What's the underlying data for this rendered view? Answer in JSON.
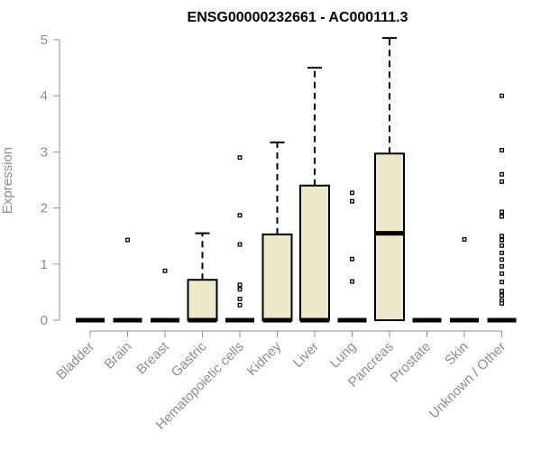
{
  "chart_data": {
    "type": "box",
    "title": "ENSG00000232661 - AC000111.3",
    "ylabel": "Expression",
    "xlabel": "",
    "ylim": [
      0,
      5
    ],
    "yticks": [
      0,
      1,
      2,
      3,
      4,
      5
    ],
    "grid": false,
    "legend": "none",
    "colors": {
      "box_fill": "#ede7cb",
      "box_stroke": "#000000",
      "axis": "#8e8e8e",
      "title": "#000000"
    },
    "categories": [
      "Bladder",
      "Brain",
      "Breast",
      "Gastric",
      "Hematopoietic cells",
      "Kidney",
      "Liver",
      "Lung",
      "Pancreas",
      "Prostate",
      "Skin",
      "Unknown / Other"
    ],
    "boxes": [
      {
        "category": "Bladder",
        "min": 0,
        "q1": 0,
        "median": 0,
        "q3": 0,
        "max": 0,
        "outliers": []
      },
      {
        "category": "Brain",
        "min": 0,
        "q1": 0,
        "median": 0,
        "q3": 0,
        "max": 0,
        "outliers": [
          1.43
        ]
      },
      {
        "category": "Breast",
        "min": 0,
        "q1": 0,
        "median": 0,
        "q3": 0,
        "max": 0,
        "outliers": [
          0.88
        ]
      },
      {
        "category": "Gastric",
        "min": 0,
        "q1": 0,
        "median": 0,
        "q3": 0.72,
        "max": 1.55,
        "outliers": []
      },
      {
        "category": "Hematopoietic cells",
        "min": 0,
        "q1": 0,
        "median": 0,
        "q3": 0,
        "max": 0,
        "outliers": [
          2.9,
          1.87,
          1.35,
          0.63,
          0.55,
          0.38,
          0.27
        ]
      },
      {
        "category": "Kidney",
        "min": 0,
        "q1": 0,
        "median": 0,
        "q3": 1.53,
        "max": 3.17,
        "outliers": []
      },
      {
        "category": "Liver",
        "min": 0,
        "q1": 0,
        "median": 0,
        "q3": 2.4,
        "max": 4.5,
        "outliers": []
      },
      {
        "category": "Lung",
        "min": 0,
        "q1": 0,
        "median": 0,
        "q3": 0,
        "max": 0,
        "outliers": [
          2.27,
          2.12,
          1.09,
          0.69
        ]
      },
      {
        "category": "Pancreas",
        "min": 0,
        "q1": 0,
        "median": 1.55,
        "q3": 2.97,
        "max": 5.03,
        "outliers": []
      },
      {
        "category": "Prostate",
        "min": 0,
        "q1": 0,
        "median": 0,
        "q3": 0,
        "max": 0,
        "outliers": []
      },
      {
        "category": "Skin",
        "min": 0,
        "q1": 0,
        "median": 0,
        "q3": 0,
        "max": 0,
        "outliers": [
          1.44
        ]
      },
      {
        "category": "Unknown / Other",
        "min": 0,
        "q1": 0,
        "median": 0,
        "q3": 0,
        "max": 0,
        "outliers": [
          4.0,
          3.03,
          2.6,
          2.47,
          1.93,
          1.85,
          1.5,
          1.43,
          1.33,
          1.2,
          1.08,
          0.96,
          0.83,
          0.68,
          0.52,
          0.44,
          0.35,
          0.3
        ]
      }
    ]
  }
}
